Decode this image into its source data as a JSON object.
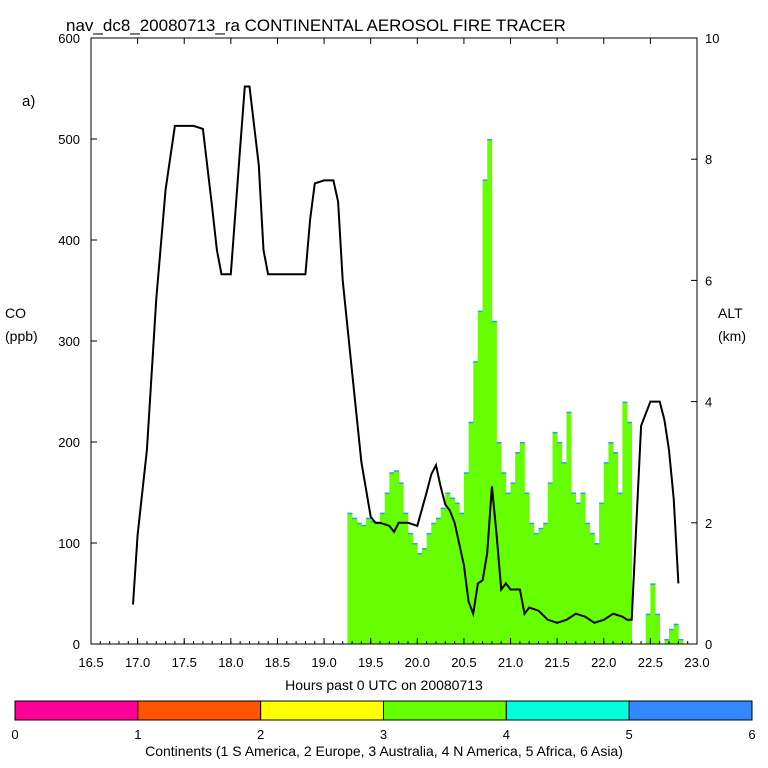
{
  "chart_data": {
    "type": "bar+line",
    "title": "nav_dc8_20080713_ra CONTINENTAL AEROSOL FIRE TRACER",
    "panel_label": "a)",
    "xlabel": "Hours past 0 UTC on 20080713",
    "ylabel_left": [
      "CO",
      "(ppb)"
    ],
    "ylabel_right": [
      "ALT",
      "(km)"
    ],
    "xlim": [
      16.5,
      23.0
    ],
    "ylim_left": [
      0,
      600
    ],
    "ylim_right": [
      0,
      10
    ],
    "xticks": [
      "16.5",
      "17.0",
      "17.5",
      "18.0",
      "18.5",
      "19.0",
      "19.5",
      "20.0",
      "20.5",
      "21.0",
      "21.5",
      "22.0",
      "22.5",
      "23.0"
    ],
    "yticks_left": [
      "0",
      "100",
      "200",
      "300",
      "400",
      "500",
      "600"
    ],
    "yticks_right": [
      "0",
      "2",
      "4",
      "6",
      "8",
      "10"
    ],
    "bar_series": {
      "name": "CO (colored by continent)",
      "color": "#66ff00",
      "top_color": "#3399ff",
      "x": [
        19.25,
        19.3,
        19.35,
        19.4,
        19.45,
        19.5,
        19.55,
        19.6,
        19.65,
        19.7,
        19.75,
        19.8,
        19.85,
        19.9,
        19.95,
        20.0,
        20.05,
        20.1,
        20.15,
        20.2,
        20.25,
        20.3,
        20.35,
        20.4,
        20.45,
        20.5,
        20.55,
        20.6,
        20.65,
        20.7,
        20.75,
        20.8,
        20.85,
        20.9,
        20.95,
        21.0,
        21.05,
        21.1,
        21.15,
        21.2,
        21.25,
        21.3,
        21.35,
        21.4,
        21.45,
        21.5,
        21.55,
        21.6,
        21.65,
        21.7,
        21.75,
        21.8,
        21.85,
        21.9,
        21.95,
        22.0,
        22.05,
        22.1,
        22.15,
        22.2,
        22.25,
        22.3,
        22.35,
        22.4,
        22.45,
        22.5,
        22.55,
        22.6,
        22.65,
        22.7,
        22.75,
        22.8
      ],
      "values": [
        130,
        125,
        120,
        118,
        125,
        122,
        120,
        130,
        150,
        170,
        172,
        160,
        130,
        110,
        100,
        90,
        95,
        110,
        120,
        125,
        135,
        150,
        145,
        140,
        130,
        170,
        220,
        280,
        330,
        460,
        500,
        320,
        200,
        170,
        150,
        160,
        190,
        200,
        150,
        120,
        110,
        115,
        120,
        160,
        210,
        200,
        180,
        230,
        150,
        140,
        150,
        120,
        110,
        100,
        140,
        180,
        200,
        190,
        150,
        240,
        220,
        0,
        0,
        0,
        30,
        60,
        30,
        0,
        5,
        15,
        20,
        5
      ]
    },
    "line_series": {
      "name": "ALT (km)",
      "color": "#000000",
      "x": [
        16.95,
        17.0,
        17.1,
        17.2,
        17.3,
        17.4,
        17.5,
        17.6,
        17.7,
        17.8,
        17.85,
        17.9,
        18.0,
        18.1,
        18.15,
        18.2,
        18.3,
        18.35,
        18.4,
        18.5,
        18.6,
        18.7,
        18.8,
        18.85,
        18.9,
        19.0,
        19.1,
        19.15,
        19.2,
        19.3,
        19.4,
        19.5,
        19.55,
        19.6,
        19.7,
        19.75,
        19.8,
        19.9,
        20.0,
        20.1,
        20.15,
        20.2,
        20.25,
        20.3,
        20.35,
        20.4,
        20.5,
        20.55,
        20.6,
        20.65,
        20.7,
        20.75,
        20.8,
        20.85,
        20.9,
        20.95,
        21.0,
        21.1,
        21.15,
        21.2,
        21.3,
        21.4,
        21.5,
        21.6,
        21.7,
        21.8,
        21.9,
        22.0,
        22.1,
        22.2,
        22.25,
        22.3,
        22.35,
        22.4,
        22.5,
        22.6,
        22.65,
        22.7,
        22.75,
        22.8
      ],
      "values": [
        0.65,
        1.8,
        3.2,
        5.7,
        7.5,
        8.55,
        8.55,
        8.55,
        8.5,
        7.2,
        6.5,
        6.1,
        6.1,
        8.2,
        9.2,
        9.2,
        7.9,
        6.5,
        6.1,
        6.1,
        6.1,
        6.1,
        6.1,
        7.0,
        7.6,
        7.65,
        7.65,
        7.3,
        6.0,
        4.5,
        3.0,
        2.1,
        2.0,
        2.0,
        1.95,
        1.85,
        2.0,
        2.0,
        1.95,
        2.5,
        2.8,
        2.95,
        2.6,
        2.3,
        2.2,
        2.0,
        1.3,
        0.7,
        0.5,
        1.0,
        1.05,
        1.5,
        2.6,
        1.8,
        0.9,
        1.0,
        0.9,
        0.9,
        0.5,
        0.6,
        0.55,
        0.4,
        0.35,
        0.4,
        0.5,
        0.45,
        0.35,
        0.4,
        0.5,
        0.45,
        0.4,
        0.4,
        2.0,
        3.6,
        4.0,
        4.0,
        3.7,
        3.2,
        2.4,
        1.0
      ]
    },
    "colorbar": {
      "ticks": [
        "0",
        "1",
        "2",
        "3",
        "4",
        "5",
        "6"
      ],
      "colors": [
        "#ff0099",
        "#ff5500",
        "#ffff00",
        "#66ff00",
        "#00ffdd",
        "#3388ff"
      ],
      "label": "Continents (1 S America, 2 Europe, 3 Australia, 4 N America, 5 Africa, 6 Asia)"
    }
  }
}
